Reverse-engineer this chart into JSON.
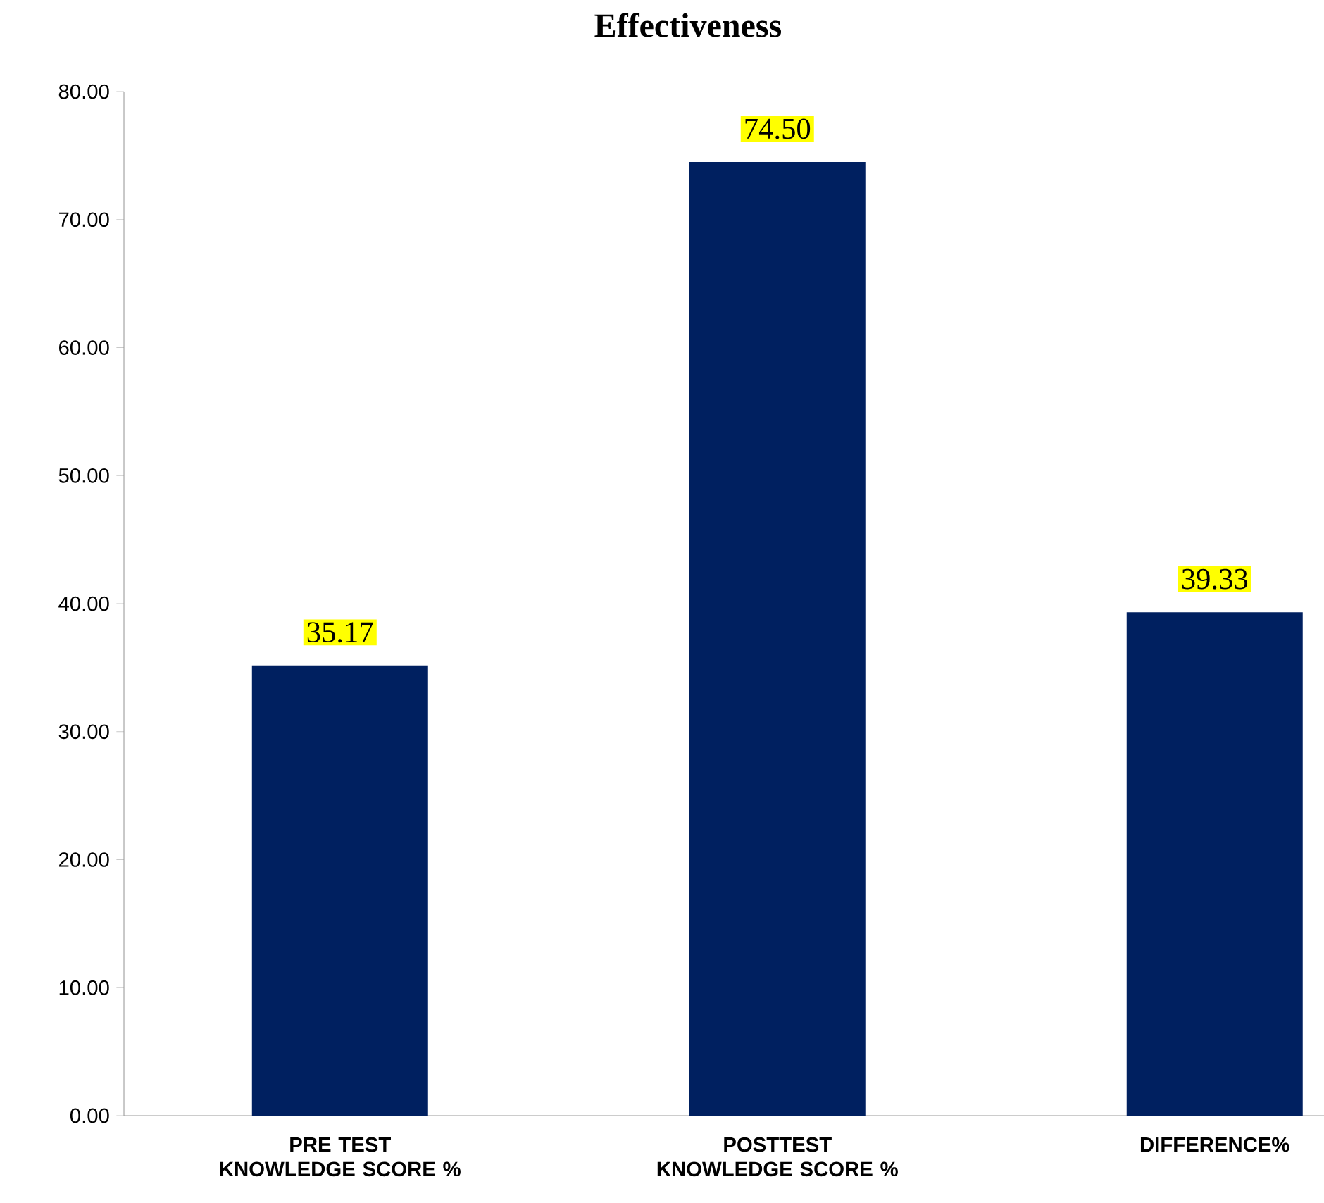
{
  "chart_data": {
    "type": "bar",
    "title": "Effectiveness",
    "categories": [
      "PRE TEST KNOWLEDGE SCORE %",
      "POSTTEST KNOWLEDGE SCORE %",
      "DIFFERENCE%"
    ],
    "values": [
      35.17,
      74.5,
      39.33
    ],
    "value_labels": [
      "35.17",
      "74.50",
      "39.33"
    ],
    "color": "#002060",
    "ylim": [
      0,
      80
    ],
    "yticks": [
      {
        "value": 0,
        "label": "0.00"
      },
      {
        "value": 10,
        "label": "10.00"
      },
      {
        "value": 20,
        "label": "20.00"
      },
      {
        "value": 30,
        "label": "30.00"
      },
      {
        "value": 40,
        "label": "40.00"
      },
      {
        "value": 50,
        "label": "50.00"
      },
      {
        "value": 60,
        "label": "60.00"
      },
      {
        "value": 70,
        "label": "70.00"
      },
      {
        "value": 80,
        "label": "80.00"
      }
    ],
    "grid": false
  }
}
